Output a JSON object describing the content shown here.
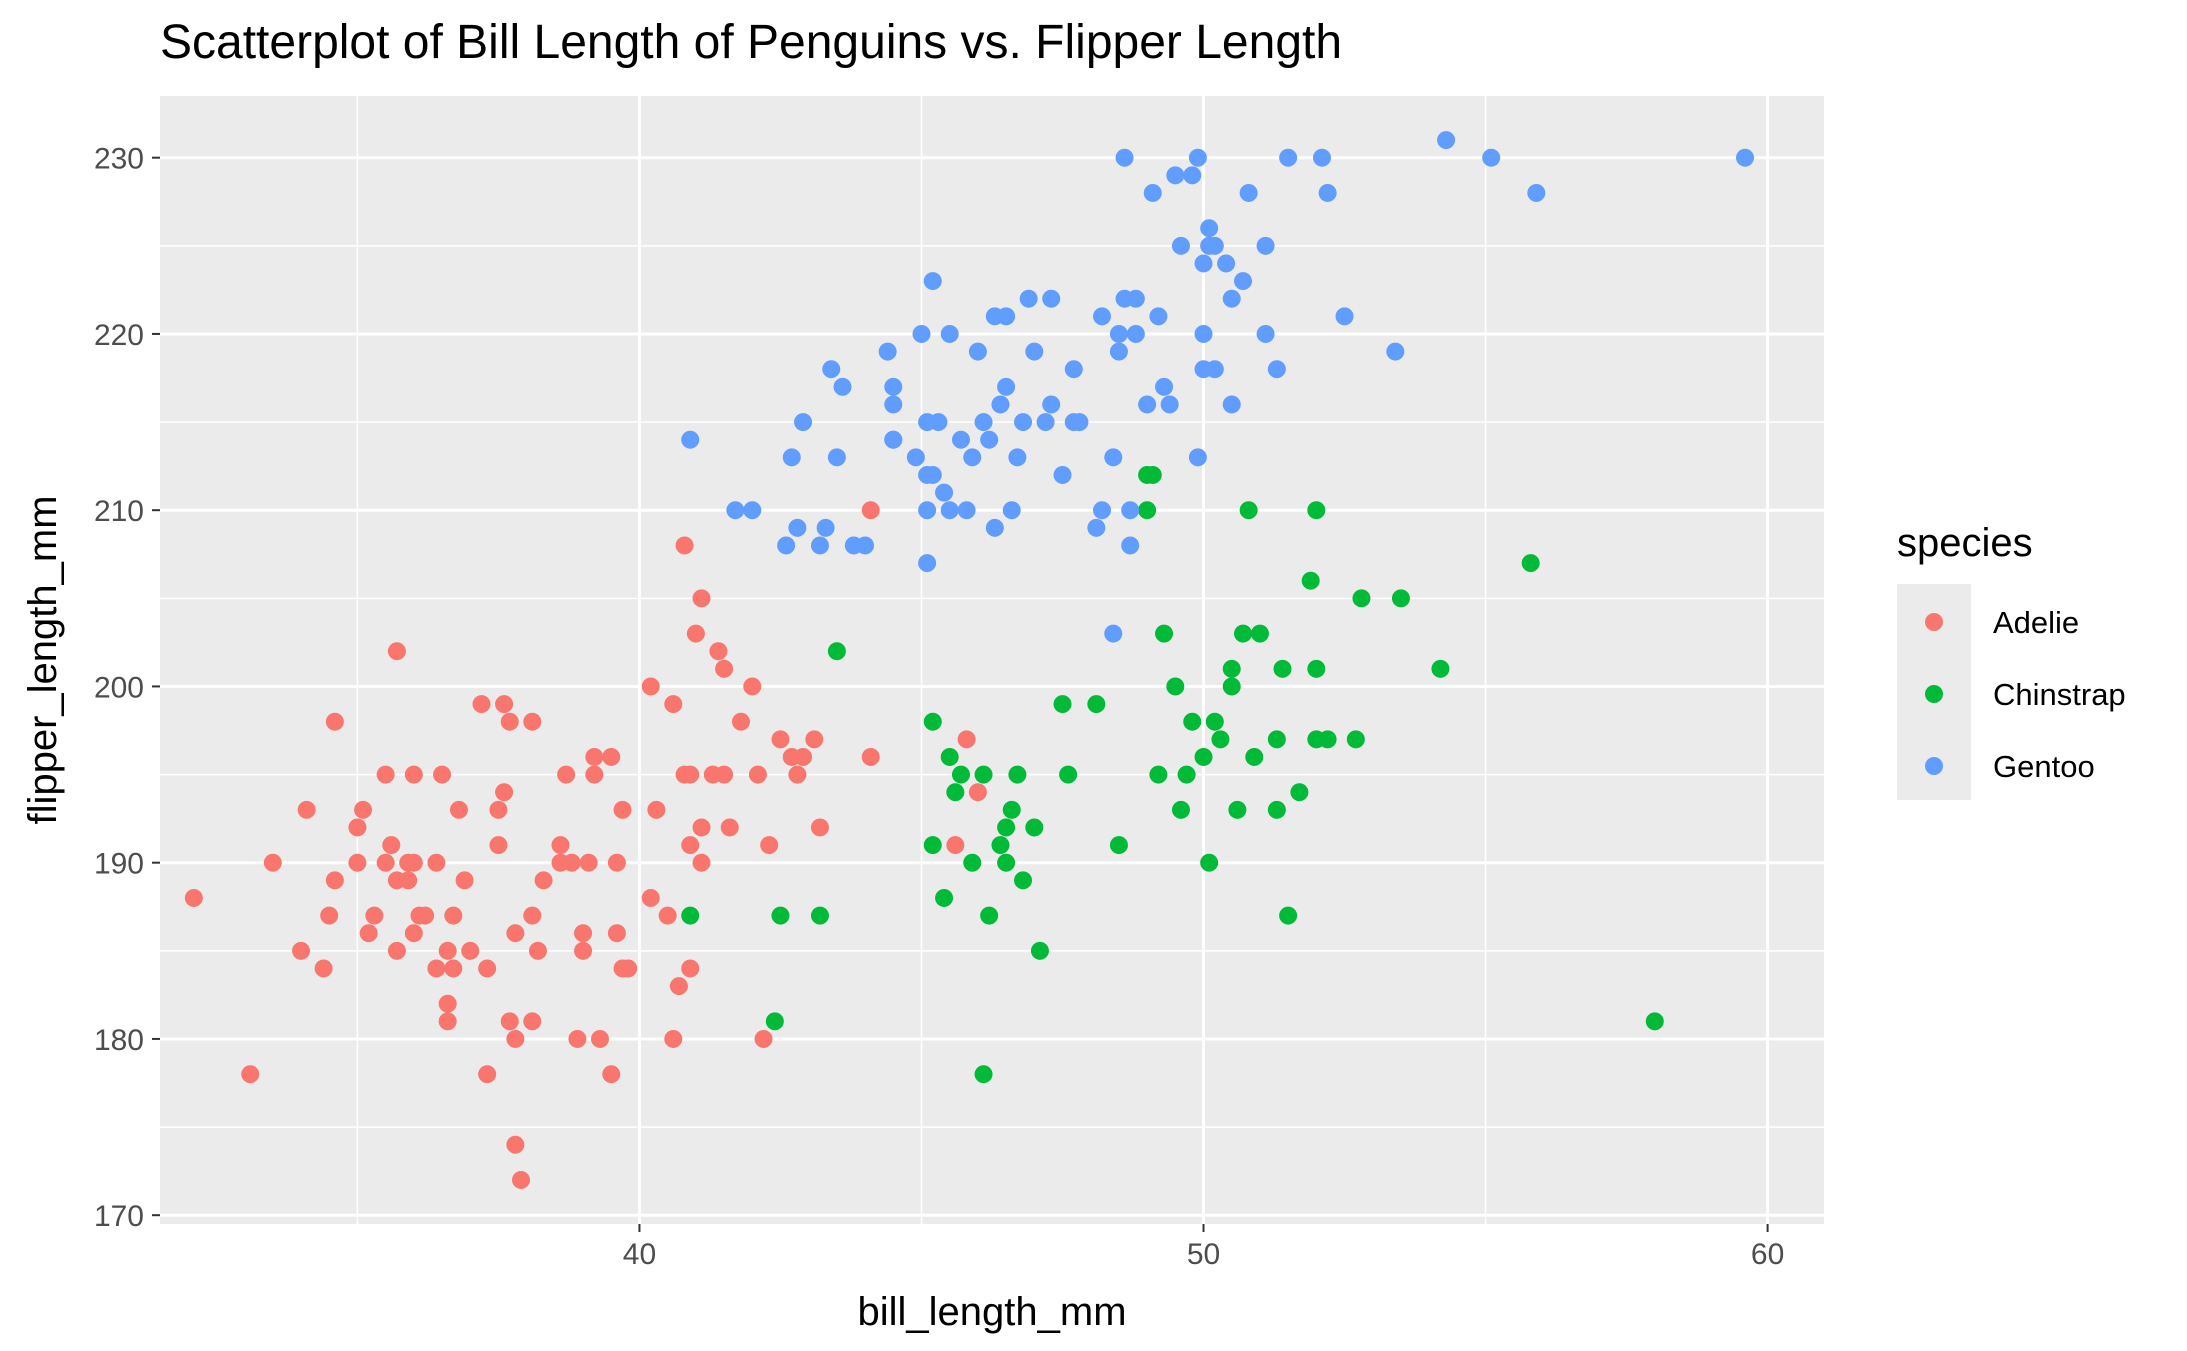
{
  "chart_data": {
    "type": "scatter",
    "title": "Scatterplot of Bill Length of Penguins vs. Flipper Length",
    "xlabel": "bill_length_mm",
    "ylabel": "flipper_length_mm",
    "xlim": [
      31.5,
      61.0
    ],
    "ylim": [
      169.5,
      233.5
    ],
    "x_ticks": [
      40,
      50,
      60
    ],
    "y_ticks": [
      170,
      180,
      190,
      200,
      210,
      220,
      230
    ],
    "grid": true,
    "legend": {
      "title": "species",
      "position": "right"
    },
    "series": [
      {
        "name": "Adelie",
        "color": "#F8766D",
        "points": [
          [
            32.1,
            188
          ],
          [
            33.1,
            178
          ],
          [
            33.5,
            190
          ],
          [
            34.0,
            185
          ],
          [
            34.1,
            193
          ],
          [
            34.4,
            184
          ],
          [
            34.5,
            187
          ],
          [
            34.6,
            189
          ],
          [
            34.6,
            198
          ],
          [
            35.0,
            190
          ],
          [
            35.0,
            192
          ],
          [
            35.1,
            193
          ],
          [
            35.2,
            186
          ],
          [
            35.3,
            187
          ],
          [
            35.5,
            190
          ],
          [
            35.5,
            195
          ],
          [
            35.6,
            191
          ],
          [
            35.7,
            185
          ],
          [
            35.7,
            202
          ],
          [
            35.7,
            189
          ],
          [
            35.9,
            190
          ],
          [
            35.9,
            189
          ],
          [
            36.0,
            186
          ],
          [
            36.0,
            195
          ],
          [
            36.0,
            190
          ],
          [
            36.1,
            187
          ],
          [
            36.2,
            187
          ],
          [
            36.4,
            190
          ],
          [
            36.4,
            184
          ],
          [
            36.5,
            195
          ],
          [
            36.6,
            185
          ],
          [
            36.6,
            182
          ],
          [
            36.6,
            181
          ],
          [
            36.7,
            184
          ],
          [
            36.7,
            187
          ],
          [
            36.8,
            193
          ],
          [
            36.9,
            189
          ],
          [
            37.0,
            185
          ],
          [
            37.3,
            178
          ],
          [
            37.3,
            184
          ],
          [
            37.5,
            193
          ],
          [
            37.5,
            191
          ],
          [
            37.7,
            181
          ],
          [
            37.7,
            198
          ],
          [
            37.8,
            186
          ],
          [
            37.6,
            194
          ],
          [
            37.8,
            174
          ],
          [
            37.8,
            180
          ],
          [
            37.9,
            172
          ],
          [
            38.1,
            181
          ],
          [
            38.1,
            187
          ],
          [
            38.1,
            198
          ],
          [
            38.2,
            185
          ],
          [
            38.3,
            189
          ],
          [
            38.6,
            191
          ],
          [
            38.6,
            190
          ],
          [
            38.7,
            195
          ],
          [
            38.8,
            190
          ],
          [
            38.9,
            180
          ],
          [
            39.0,
            185
          ],
          [
            39.0,
            186
          ],
          [
            39.1,
            190
          ],
          [
            39.2,
            195
          ],
          [
            39.2,
            196
          ],
          [
            39.5,
            196
          ],
          [
            39.5,
            178
          ],
          [
            39.6,
            186
          ],
          [
            39.6,
            190
          ],
          [
            39.7,
            184
          ],
          [
            39.7,
            193
          ],
          [
            39.8,
            184
          ],
          [
            40.2,
            188
          ],
          [
            40.2,
            200
          ],
          [
            40.3,
            193
          ],
          [
            40.5,
            187
          ],
          [
            40.6,
            180
          ],
          [
            40.6,
            199
          ],
          [
            40.7,
            183
          ],
          [
            40.8,
            195
          ],
          [
            40.9,
            184
          ],
          [
            40.9,
            191
          ],
          [
            41.0,
            203
          ],
          [
            41.1,
            192
          ],
          [
            41.1,
            190
          ],
          [
            41.1,
            205
          ],
          [
            41.3,
            195
          ],
          [
            41.4,
            202
          ],
          [
            41.5,
            201
          ],
          [
            41.5,
            195
          ],
          [
            41.6,
            192
          ],
          [
            41.8,
            198
          ],
          [
            42.0,
            200
          ],
          [
            42.1,
            195
          ],
          [
            42.2,
            180
          ],
          [
            42.3,
            191
          ],
          [
            42.5,
            197
          ],
          [
            42.7,
            196
          ],
          [
            42.8,
            195
          ],
          [
            42.9,
            196
          ],
          [
            43.1,
            197
          ],
          [
            43.2,
            192
          ],
          [
            44.1,
            196
          ],
          [
            44.1,
            210
          ],
          [
            45.6,
            191
          ],
          [
            45.8,
            197
          ],
          [
            46.0,
            194
          ],
          [
            40.8,
            208
          ],
          [
            40.9,
            195
          ],
          [
            39.3,
            180
          ],
          [
            37.2,
            199
          ],
          [
            37.6,
            199
          ]
        ]
      },
      {
        "name": "Chinstrap",
        "color": "#00BA38",
        "points": [
          [
            40.9,
            187
          ],
          [
            42.4,
            181
          ],
          [
            42.5,
            187
          ],
          [
            43.2,
            187
          ],
          [
            43.5,
            202
          ],
          [
            45.2,
            191
          ],
          [
            45.2,
            198
          ],
          [
            45.4,
            188
          ],
          [
            45.5,
            196
          ],
          [
            45.6,
            194
          ],
          [
            45.7,
            195
          ],
          [
            45.9,
            190
          ],
          [
            46.1,
            195
          ],
          [
            46.2,
            187
          ],
          [
            46.4,
            191
          ],
          [
            46.5,
            192
          ],
          [
            46.6,
            193
          ],
          [
            46.7,
            195
          ],
          [
            46.8,
            189
          ],
          [
            47.0,
            192
          ],
          [
            47.5,
            199
          ],
          [
            47.6,
            195
          ],
          [
            48.1,
            199
          ],
          [
            48.5,
            191
          ],
          [
            49.0,
            210
          ],
          [
            49.2,
            195
          ],
          [
            49.3,
            203
          ],
          [
            49.5,
            200
          ],
          [
            49.6,
            193
          ],
          [
            49.7,
            195
          ],
          [
            49.8,
            198
          ],
          [
            50.0,
            196
          ],
          [
            50.1,
            190
          ],
          [
            50.2,
            198
          ],
          [
            50.3,
            197
          ],
          [
            50.5,
            201
          ],
          [
            50.6,
            193
          ],
          [
            50.7,
            203
          ],
          [
            50.8,
            210
          ],
          [
            50.9,
            196
          ],
          [
            51.0,
            203
          ],
          [
            51.3,
            197
          ],
          [
            51.3,
            193
          ],
          [
            51.4,
            201
          ],
          [
            51.5,
            187
          ],
          [
            51.7,
            194
          ],
          [
            52.0,
            201
          ],
          [
            52.0,
            197
          ],
          [
            52.2,
            197
          ],
          [
            52.7,
            197
          ],
          [
            52.8,
            205
          ],
          [
            53.5,
            205
          ],
          [
            54.2,
            201
          ],
          [
            55.8,
            207
          ],
          [
            58.0,
            181
          ],
          [
            49.0,
            212
          ],
          [
            50.5,
            200
          ],
          [
            46.1,
            178
          ],
          [
            47.1,
            185
          ],
          [
            52.0,
            210
          ],
          [
            51.9,
            206
          ],
          [
            46.5,
            190
          ],
          [
            49.1,
            212
          ]
        ]
      },
      {
        "name": "Gentoo",
        "color": "#619CFF",
        "points": [
          [
            40.9,
            214
          ],
          [
            41.7,
            210
          ],
          [
            42.0,
            210
          ],
          [
            42.6,
            208
          ],
          [
            42.7,
            213
          ],
          [
            42.8,
            209
          ],
          [
            42.9,
            215
          ],
          [
            43.2,
            208
          ],
          [
            43.3,
            209
          ],
          [
            43.4,
            218
          ],
          [
            43.5,
            213
          ],
          [
            43.6,
            217
          ],
          [
            43.8,
            208
          ],
          [
            44.0,
            208
          ],
          [
            44.4,
            219
          ],
          [
            44.5,
            217
          ],
          [
            44.5,
            216
          ],
          [
            44.5,
            214
          ],
          [
            44.9,
            213
          ],
          [
            45.0,
            220
          ],
          [
            45.1,
            210
          ],
          [
            45.1,
            215
          ],
          [
            45.2,
            212
          ],
          [
            45.2,
            223
          ],
          [
            45.3,
            215
          ],
          [
            45.4,
            211
          ],
          [
            45.5,
            210
          ],
          [
            45.7,
            214
          ],
          [
            45.8,
            210
          ],
          [
            46.1,
            215
          ],
          [
            46.2,
            214
          ],
          [
            46.3,
            209
          ],
          [
            46.4,
            216
          ],
          [
            46.5,
            217
          ],
          [
            46.6,
            210
          ],
          [
            46.8,
            215
          ],
          [
            47.2,
            215
          ],
          [
            47.3,
            216
          ],
          [
            47.5,
            212
          ],
          [
            47.7,
            215
          ],
          [
            47.8,
            215
          ],
          [
            48.1,
            209
          ],
          [
            48.2,
            210
          ],
          [
            48.4,
            213
          ],
          [
            48.5,
            219
          ],
          [
            48.6,
            230
          ],
          [
            48.7,
            208
          ],
          [
            48.8,
            222
          ],
          [
            49.1,
            228
          ],
          [
            49.2,
            221
          ],
          [
            49.3,
            217
          ],
          [
            49.4,
            216
          ],
          [
            49.5,
            229
          ],
          [
            49.6,
            225
          ],
          [
            49.8,
            229
          ],
          [
            49.9,
            230
          ],
          [
            50.0,
            218
          ],
          [
            50.1,
            225
          ],
          [
            50.2,
            218
          ],
          [
            50.4,
            224
          ],
          [
            50.5,
            222
          ],
          [
            50.7,
            223
          ],
          [
            50.8,
            228
          ],
          [
            51.1,
            220
          ],
          [
            51.3,
            218
          ],
          [
            51.5,
            230
          ],
          [
            52.1,
            230
          ],
          [
            52.2,
            228
          ],
          [
            52.5,
            221
          ],
          [
            53.4,
            219
          ],
          [
            54.3,
            231
          ],
          [
            55.1,
            230
          ],
          [
            55.9,
            228
          ],
          [
            59.6,
            230
          ],
          [
            48.4,
            203
          ],
          [
            45.1,
            207
          ],
          [
            44.5,
            214
          ],
          [
            46.3,
            221
          ],
          [
            46.5,
            221
          ],
          [
            47.3,
            222
          ],
          [
            47.0,
            219
          ],
          [
            46.9,
            222
          ],
          [
            48.2,
            221
          ],
          [
            48.6,
            222
          ],
          [
            49.9,
            213
          ],
          [
            50.0,
            224
          ],
          [
            50.5,
            216
          ],
          [
            51.1,
            225
          ],
          [
            50.2,
            225
          ],
          [
            49.0,
            216
          ],
          [
            48.7,
            210
          ],
          [
            48.8,
            220
          ],
          [
            48.5,
            220
          ],
          [
            45.1,
            212
          ],
          [
            46.0,
            219
          ],
          [
            45.9,
            213
          ],
          [
            45.5,
            220
          ],
          [
            46.7,
            213
          ],
          [
            47.7,
            218
          ],
          [
            50.0,
            220
          ],
          [
            50.1,
            226
          ]
        ]
      }
    ]
  }
}
